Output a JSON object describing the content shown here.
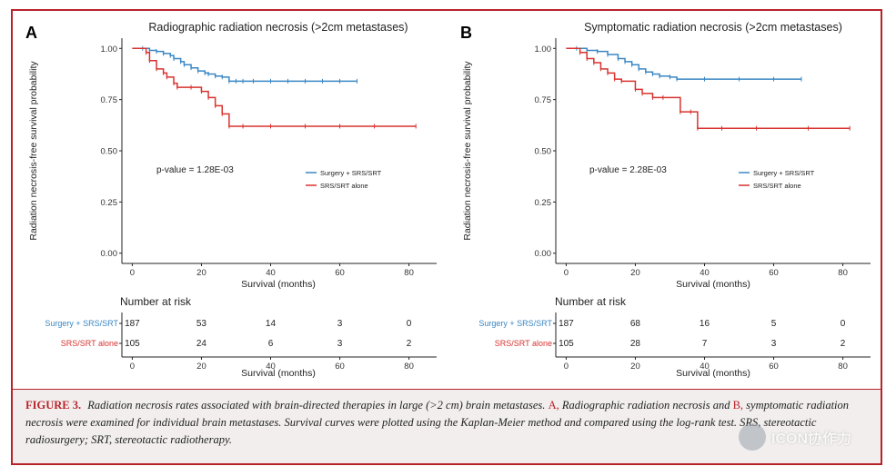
{
  "chart_data": [
    {
      "type": "line",
      "panel": "A",
      "title": "Radiographic radiation necrosis (>2cm metastases)",
      "xlabel": "Survival (months)",
      "ylabel": "Radiation necrosis-free survival probability",
      "xlim": [
        -3,
        88
      ],
      "ylim": [
        -0.05,
        1.05
      ],
      "xticks": [
        0,
        20,
        40,
        60,
        80
      ],
      "yticks": [
        "0.00",
        "0.25",
        "0.50",
        "0.75",
        "1.00"
      ],
      "annotation": "p-value = 1.28E-03",
      "legend_placement": "center-right",
      "series": [
        {
          "name": "Surgery + SRS/SRT",
          "color": "#3a87c4",
          "x": [
            0,
            3,
            5,
            7,
            9,
            11,
            12,
            14,
            15,
            17,
            19,
            21,
            22,
            24,
            26,
            28,
            30,
            32,
            35,
            40,
            45,
            50,
            55,
            60,
            65
          ],
          "y": [
            1.0,
            1.0,
            0.99,
            0.985,
            0.975,
            0.965,
            0.95,
            0.935,
            0.92,
            0.905,
            0.89,
            0.88,
            0.875,
            0.865,
            0.86,
            0.84,
            0.84,
            0.84,
            0.84,
            0.84,
            0.84,
            0.84,
            0.84,
            0.84,
            0.84
          ]
        },
        {
          "name": "SRS/SRT alone",
          "color": "#d7332f",
          "x": [
            0,
            4,
            5,
            7,
            9,
            10,
            12,
            13,
            17,
            20,
            22,
            24,
            26,
            28,
            32,
            40,
            50,
            60,
            70,
            82
          ],
          "y": [
            1.0,
            0.98,
            0.94,
            0.9,
            0.88,
            0.86,
            0.83,
            0.81,
            0.81,
            0.79,
            0.76,
            0.72,
            0.68,
            0.62,
            0.62,
            0.62,
            0.62,
            0.62,
            0.62,
            0.62
          ]
        }
      ],
      "risk_table": {
        "title": "Number at risk",
        "xlabel": "Survival (months)",
        "times": [
          0,
          20,
          40,
          60,
          80
        ],
        "rows": [
          {
            "name": "Surgery + SRS/SRT",
            "color": "#3a87c4",
            "values": [
              187,
              53,
              14,
              3,
              0
            ]
          },
          {
            "name": "SRS/SRT alone",
            "color": "#d7332f",
            "values": [
              105,
              24,
              6,
              3,
              2
            ]
          }
        ]
      }
    },
    {
      "type": "line",
      "panel": "B",
      "title": "Symptomatic radiation necrosis (>2cm metastases)",
      "xlabel": "Survival (months)",
      "ylabel": "Radiation necrosis-free survival probability",
      "xlim": [
        -3,
        88
      ],
      "ylim": [
        -0.05,
        1.05
      ],
      "xticks": [
        0,
        20,
        40,
        60,
        80
      ],
      "yticks": [
        "0.00",
        "0.25",
        "0.50",
        "0.75",
        "1.00"
      ],
      "annotation": "p-value = 2.28E-03",
      "legend_placement": "center-right",
      "series": [
        {
          "name": "Surgery + SRS/SRT",
          "color": "#3a87c4",
          "x": [
            0,
            3,
            6,
            9,
            12,
            15,
            17,
            19,
            21,
            23,
            25,
            27,
            30,
            32,
            40,
            50,
            60,
            68
          ],
          "y": [
            1.0,
            1.0,
            0.99,
            0.985,
            0.97,
            0.95,
            0.935,
            0.92,
            0.9,
            0.885,
            0.875,
            0.865,
            0.86,
            0.85,
            0.85,
            0.85,
            0.85,
            0.85
          ]
        },
        {
          "name": "SRS/SRT alone",
          "color": "#d7332f",
          "x": [
            0,
            4,
            6,
            8,
            10,
            12,
            14,
            16,
            20,
            22,
            25,
            28,
            33,
            36,
            38,
            45,
            55,
            70,
            82
          ],
          "y": [
            1.0,
            0.98,
            0.95,
            0.93,
            0.9,
            0.88,
            0.85,
            0.84,
            0.8,
            0.78,
            0.76,
            0.76,
            0.69,
            0.69,
            0.61,
            0.61,
            0.61,
            0.61,
            0.61
          ]
        }
      ],
      "risk_table": {
        "title": "Number at risk",
        "xlabel": "Survival (months)",
        "times": [
          0,
          20,
          40,
          60,
          80
        ],
        "rows": [
          {
            "name": "Surgery + SRS/SRT",
            "color": "#3a87c4",
            "values": [
              187,
              68,
              16,
              5,
              0
            ]
          },
          {
            "name": "SRS/SRT alone",
            "color": "#d7332f",
            "values": [
              105,
              28,
              7,
              3,
              2
            ]
          }
        ]
      }
    }
  ],
  "caption": {
    "label": "FIGURE 3.",
    "part1": "Radiation necrosis rates associated with brain-directed therapies in large (>2 cm) brain metastases.",
    "markerA": "A,",
    "part2": "Radiographic radiation necrosis and",
    "markerB": "B,",
    "part3": "symptomatic radiation necrosis were examined for individual brain metastases. Survival curves were plotted using the Kaplan-Meier method and compared using the log-rank test. SRS, stereotactic radiosurgery; SRT, stereotactic radiotherapy."
  },
  "watermark": {
    "text": "ICON协作力"
  }
}
